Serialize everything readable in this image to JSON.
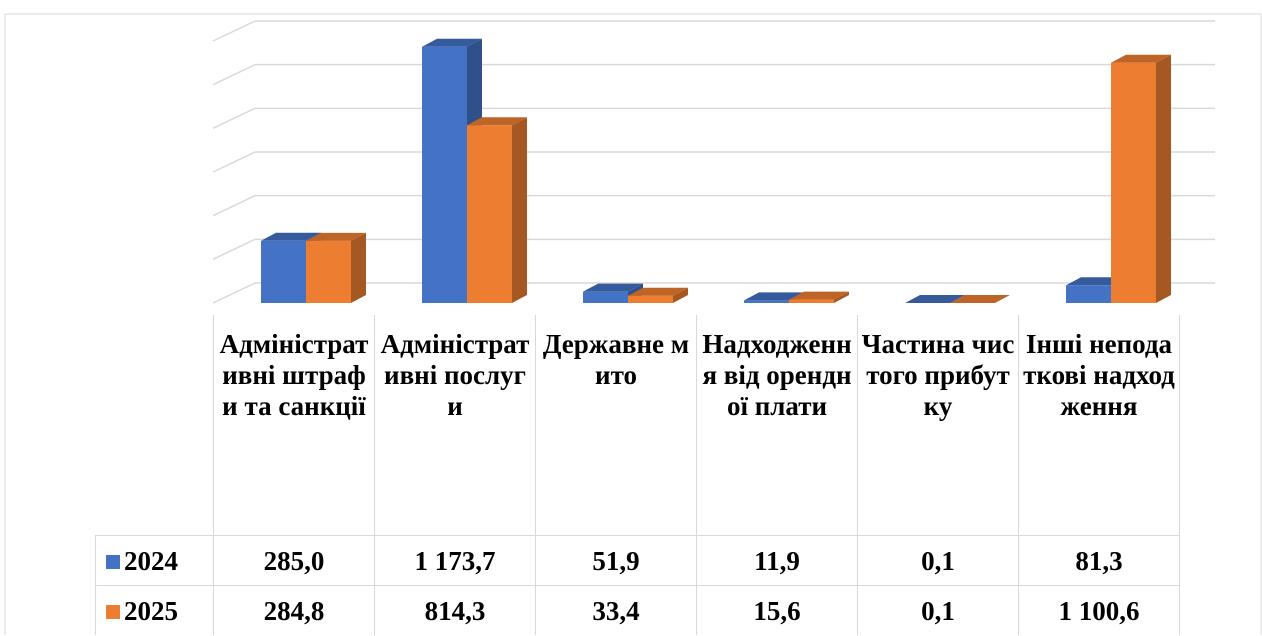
{
  "chart_data": {
    "type": "bar3d",
    "categories": [
      "Адміністративні штрафи та санкції",
      "Адміністративні послуги",
      "Державне мито",
      "Надходження від орендної плати",
      "Частина чистого прибутку",
      "Інші неподаткові надходження"
    ],
    "series": [
      {
        "name": "2024",
        "color": "#4472c4",
        "values": [
          285.0,
          1173.7,
          51.9,
          11.9,
          0.1,
          81.3
        ],
        "value_labels": [
          "285,0",
          "1 173,7",
          "51,9",
          "11,9",
          "0,1",
          "81,3"
        ]
      },
      {
        "name": "2025",
        "color": "#ed7d31",
        "values": [
          284.8,
          814.3,
          33.4,
          15.6,
          0.1,
          1100.6
        ],
        "value_labels": [
          "284,8",
          "814,3",
          "33,4",
          "15,6",
          "0,1",
          "1 100,6"
        ]
      }
    ],
    "ylim": [
      0,
      1200
    ],
    "yticks": [
      0,
      200,
      400,
      600,
      800,
      1000,
      1200
    ],
    "grid": true,
    "data_table": true
  }
}
